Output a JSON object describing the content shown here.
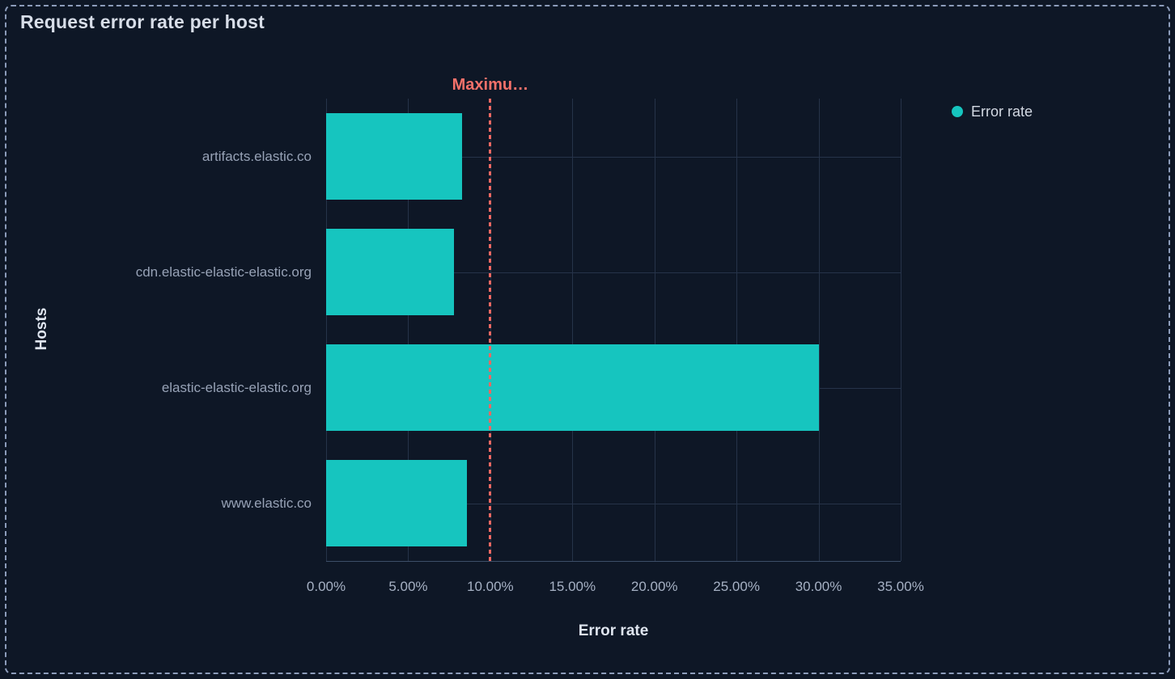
{
  "panel": {
    "title": "Request error rate per host"
  },
  "legend": {
    "position": "right",
    "items": [
      {
        "label": "Error rate",
        "color": "#16c5bf"
      }
    ]
  },
  "chart_data": {
    "type": "bar",
    "orientation": "horizontal",
    "title": "Request error rate per host",
    "xlabel": "Error rate",
    "ylabel": "Hosts",
    "categories": [
      "artifacts.elastic.co",
      "cdn.elastic-elastic-elastic.org",
      "elastic-elastic-elastic.org",
      "www.elastic.co"
    ],
    "series": [
      {
        "name": "Error rate",
        "color": "#16c5bf",
        "values": [
          8.3,
          7.8,
          30.0,
          8.6
        ]
      }
    ],
    "value_unit": "%",
    "xlim": [
      0,
      35
    ],
    "x_tick_values": [
      0,
      5,
      10,
      15,
      20,
      25,
      30,
      35
    ],
    "x_tick_labels": [
      "0.00%",
      "5.00%",
      "10.00%",
      "15.00%",
      "20.00%",
      "25.00%",
      "30.00%",
      "35.00%"
    ],
    "grid": true,
    "legend_position": "right",
    "threshold_line": {
      "value": 10,
      "label": "Maximu…",
      "label_truncated": true,
      "line_color": "#ef6862",
      "label_color": "#f6716a",
      "style": "dashed"
    }
  },
  "colors": {
    "background": "#0e1726",
    "panel_border": "#8c9cba",
    "bar": "#16c5bf",
    "gridline": "#263349",
    "axis_line": "#3d4e68",
    "title_text": "#d7dde8",
    "tick_text": "#a6b1c4",
    "category_text": "#97a2b6",
    "axis_title_text": "#dfe5ef",
    "legend_text": "#d3d9e3"
  }
}
